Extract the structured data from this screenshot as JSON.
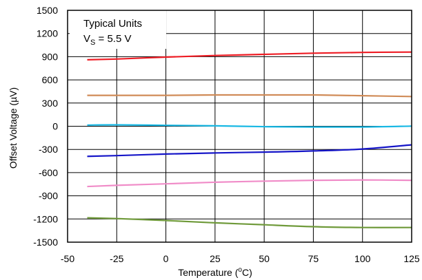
{
  "chart_data": {
    "type": "line",
    "xlabel": {
      "text": "Temperature (",
      "sup": "o",
      "suffix": "C)"
    },
    "ylabel": "Offset Voltage (µV)",
    "xlim": [
      -50,
      125
    ],
    "ylim": [
      -1500,
      1500
    ],
    "x_ticks": [
      -50,
      -25,
      0,
      25,
      50,
      75,
      100,
      125
    ],
    "y_ticks": [
      1500,
      1200,
      900,
      600,
      300,
      0,
      -300,
      -600,
      -900,
      -1200,
      -1500
    ],
    "grid": true,
    "annotation": {
      "line1": "Typical Units",
      "line2_prefix": "V",
      "line2_sub": "S",
      "line2_suffix": " = 5.5 V"
    },
    "series": [
      {
        "color": "#ee1c24",
        "points": [
          [
            -40,
            860
          ],
          [
            -25,
            870
          ],
          [
            0,
            895
          ],
          [
            25,
            915
          ],
          [
            50,
            930
          ],
          [
            75,
            945
          ],
          [
            100,
            955
          ],
          [
            125,
            960
          ]
        ]
      },
      {
        "color": "#d08b57",
        "points": [
          [
            -40,
            400
          ],
          [
            -25,
            400
          ],
          [
            0,
            400
          ],
          [
            25,
            405
          ],
          [
            50,
            405
          ],
          [
            75,
            405
          ],
          [
            100,
            395
          ],
          [
            125,
            385
          ]
        ]
      },
      {
        "color": "#18b8e4",
        "points": [
          [
            -40,
            15
          ],
          [
            -25,
            18
          ],
          [
            0,
            12
          ],
          [
            25,
            5
          ],
          [
            50,
            -5
          ],
          [
            75,
            -10
          ],
          [
            100,
            -10
          ],
          [
            125,
            2
          ]
        ]
      },
      {
        "color": "#1515c8",
        "points": [
          [
            -40,
            -390
          ],
          [
            -25,
            -380
          ],
          [
            0,
            -360
          ],
          [
            25,
            -345
          ],
          [
            50,
            -335
          ],
          [
            75,
            -320
          ],
          [
            100,
            -295
          ],
          [
            125,
            -240
          ]
        ]
      },
      {
        "color": "#f08cc8",
        "points": [
          [
            -40,
            -780
          ],
          [
            -25,
            -765
          ],
          [
            0,
            -745
          ],
          [
            25,
            -725
          ],
          [
            50,
            -710
          ],
          [
            75,
            -700
          ],
          [
            100,
            -695
          ],
          [
            125,
            -700
          ]
        ]
      },
      {
        "color": "#6f9a3a",
        "points": [
          [
            -40,
            -1185
          ],
          [
            -25,
            -1195
          ],
          [
            0,
            -1220
          ],
          [
            25,
            -1250
          ],
          [
            50,
            -1275
          ],
          [
            75,
            -1300
          ],
          [
            100,
            -1310
          ],
          [
            125,
            -1310
          ]
        ]
      }
    ]
  }
}
